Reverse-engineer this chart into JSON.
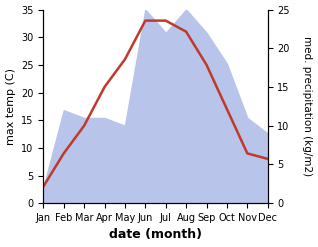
{
  "months": [
    "Jan",
    "Feb",
    "Mar",
    "Apr",
    "May",
    "Jun",
    "Jul",
    "Aug",
    "Sep",
    "Oct",
    "Nov",
    "Dec"
  ],
  "x": [
    1,
    2,
    3,
    4,
    5,
    6,
    7,
    8,
    9,
    10,
    11,
    12
  ],
  "temperature": [
    3,
    9,
    14,
    21,
    26,
    33,
    33,
    31,
    25,
    17,
    9,
    8
  ],
  "precipitation": [
    2,
    12,
    11,
    11,
    10,
    25,
    22,
    25,
    22,
    18,
    11,
    9
  ],
  "temp_color": "#c0392b",
  "precip_fill_color": "#b8c4ea",
  "temp_ylim": [
    0,
    35
  ],
  "precip_ylim": [
    0,
    25
  ],
  "temp_yticks": [
    0,
    5,
    10,
    15,
    20,
    25,
    30,
    35
  ],
  "precip_yticks": [
    0,
    5,
    10,
    15,
    20,
    25
  ],
  "xlabel": "date (month)",
  "ylabel_left": "max temp (C)",
  "ylabel_right": "med. precipitation (kg/m2)",
  "bg_color": "#ffffff",
  "label_fontsize": 8,
  "tick_fontsize": 7,
  "line_linewidth": 1.8
}
